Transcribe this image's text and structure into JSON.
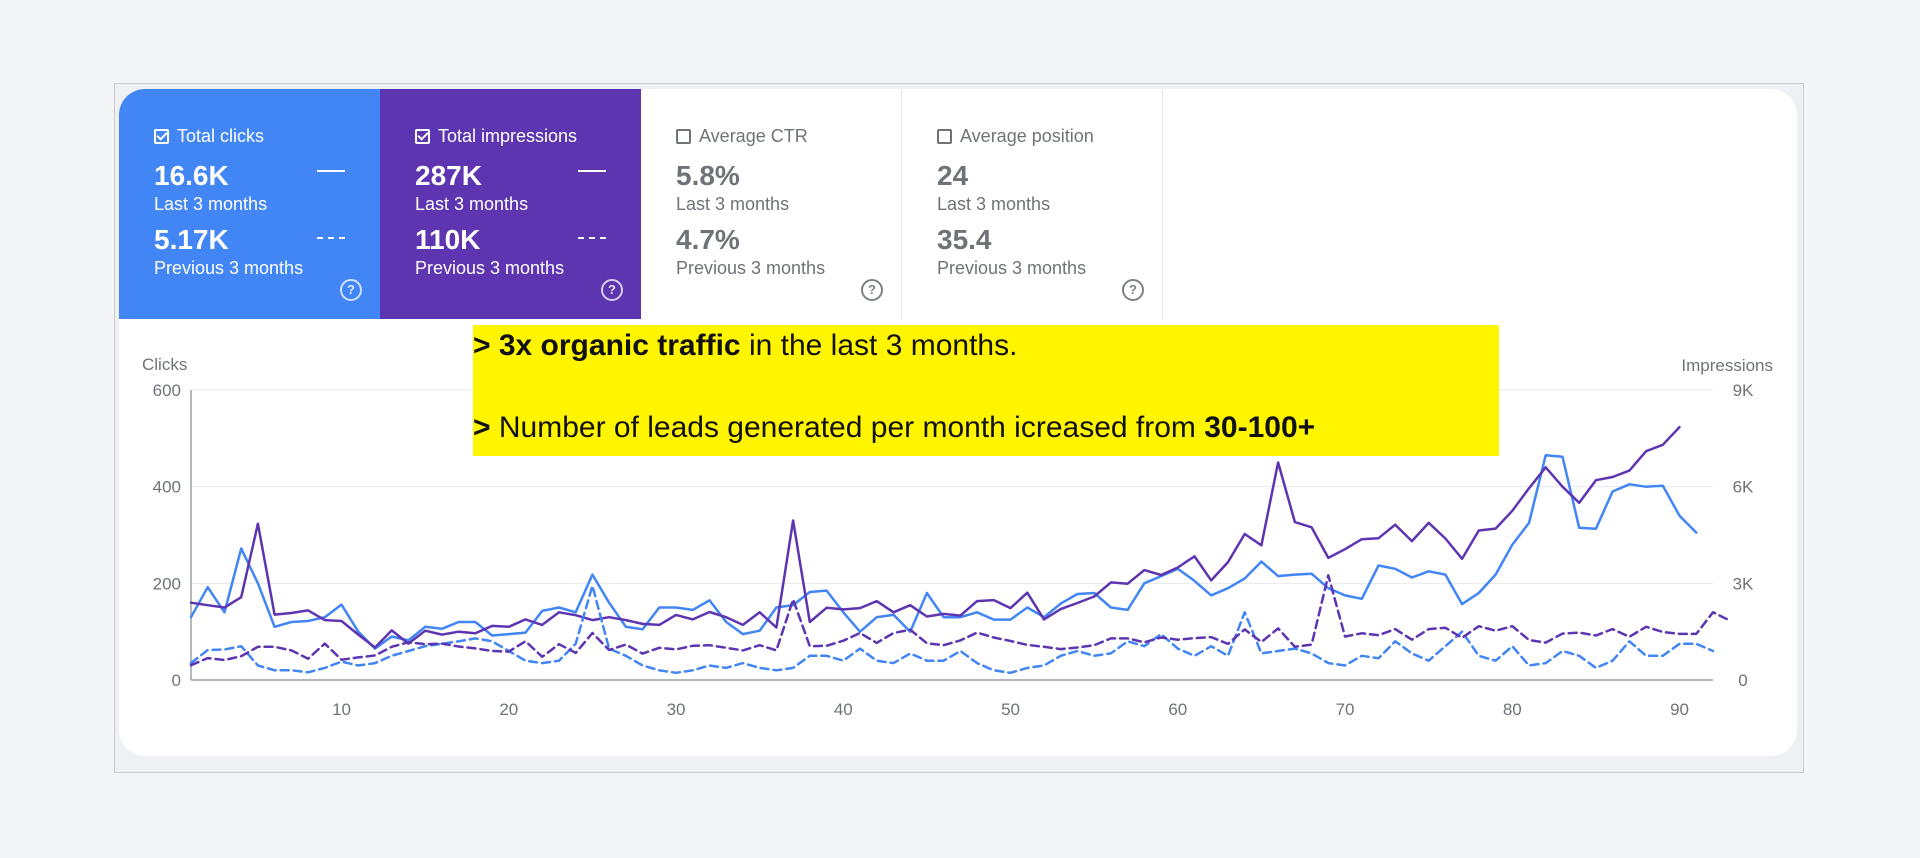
{
  "cards": [
    {
      "label": "Total clicks",
      "current": "16.6K",
      "current_label": "Last 3 months",
      "previous": "5.17K",
      "previous_label": "Previous 3 months",
      "help": "?"
    },
    {
      "label": "Total impressions",
      "current": "287K",
      "current_label": "Last 3 months",
      "previous": "110K",
      "previous_label": "Previous 3 months",
      "help": "?"
    },
    {
      "label": "Average CTR",
      "current": "5.8%",
      "current_label": "Last 3 months",
      "previous": "4.7%",
      "previous_label": "Previous 3 months",
      "help": "?"
    },
    {
      "label": "Average position",
      "current": "24",
      "current_label": "Last 3 months",
      "previous": "35.4",
      "previous_label": "Previous 3 months",
      "help": "?"
    }
  ],
  "banner": {
    "line1_bold": "> 3x organic traffic",
    "line1_rest": " in the last 3 months.",
    "line2_bold_prefix": ">",
    "line2_text": " Number of leads generated per month icreased from ",
    "line2_bold_suffix": "30-100+"
  },
  "colors": {
    "clicks": "#4285f4",
    "impressions": "#5e35b1",
    "grid": "#e9eaec",
    "axis_text": "#6f7378"
  },
  "chart_data": {
    "type": "line",
    "xlabel": "",
    "ylabel": "Clicks",
    "y2label": "Impressions",
    "xlim": [
      1,
      92
    ],
    "xticks": [
      10,
      20,
      30,
      40,
      50,
      60,
      70,
      80,
      90
    ],
    "ylim": [
      0,
      600
    ],
    "yticks": [
      0,
      200,
      400,
      600
    ],
    "y2lim": [
      0,
      9000
    ],
    "y2ticks": [
      "0",
      "3K",
      "6K",
      "9K"
    ],
    "series": [
      {
        "name": "Total clicks (Last 3 months)",
        "axis": "left",
        "style": "solid",
        "color": "#4285f4",
        "values": [
          130,
          192,
          140,
          272,
          200,
          110,
          120,
          122,
          130,
          156,
          100,
          65,
          90,
          82,
          110,
          106,
          120,
          120,
          92,
          95,
          98,
          143,
          150,
          140,
          218,
          160,
          110,
          105,
          150,
          150,
          145,
          165,
          120,
          95,
          102,
          150,
          155,
          182,
          185,
          140,
          100,
          130,
          135,
          100,
          180,
          130,
          130,
          140,
          125,
          125,
          150,
          130,
          158,
          178,
          180,
          150,
          145,
          200,
          215,
          230,
          205,
          175,
          190,
          210,
          245,
          215,
          218,
          220,
          190,
          175,
          168,
          237,
          230,
          212,
          225,
          218,
          157,
          180,
          218,
          280,
          325,
          465,
          462,
          315,
          313,
          390,
          405,
          400,
          402,
          340,
          305
        ]
      },
      {
        "name": "Total impressions (Last 3 months)",
        "axis": "right",
        "style": "solid",
        "color": "#5e35b1",
        "values": [
          2400,
          2320,
          2250,
          2570,
          4850,
          2030,
          2080,
          2160,
          1860,
          1830,
          1410,
          1010,
          1540,
          1130,
          1530,
          1410,
          1500,
          1450,
          1680,
          1650,
          1880,
          1710,
          2100,
          2010,
          1860,
          1950,
          1860,
          1740,
          1710,
          2020,
          1880,
          2110,
          1950,
          1710,
          2100,
          1630,
          4950,
          1800,
          2240,
          2190,
          2230,
          2450,
          2100,
          2320,
          1970,
          2050,
          2000,
          2450,
          2480,
          2230,
          2710,
          1880,
          2200,
          2390,
          2590,
          3030,
          2990,
          3410,
          3260,
          3490,
          3840,
          3090,
          3660,
          4530,
          4180,
          6750,
          4900,
          4740,
          3790,
          4060,
          4370,
          4400,
          4820,
          4310,
          4880,
          4390,
          3760,
          4640,
          4700,
          5250,
          5950,
          6600,
          6000,
          5500,
          6200,
          6300,
          6500,
          7100,
          7300,
          7850
        ]
      },
      {
        "name": "Total clicks (Previous 3 months)",
        "axis": "left",
        "style": "dashed",
        "color": "#4285f4",
        "values": [
          35,
          62,
          63,
          70,
          30,
          20,
          20,
          16,
          25,
          38,
          30,
          35,
          50,
          60,
          70,
          75,
          80,
          86,
          80,
          60,
          40,
          35,
          40,
          75,
          195,
          65,
          50,
          30,
          20,
          15,
          20,
          30,
          25,
          35,
          25,
          20,
          25,
          50,
          50,
          40,
          65,
          40,
          35,
          55,
          40,
          40,
          60,
          35,
          20,
          15,
          25,
          30,
          50,
          60,
          50,
          55,
          80,
          70,
          95,
          65,
          50,
          70,
          50,
          140,
          55,
          60,
          65,
          55,
          35,
          30,
          50,
          45,
          80,
          55,
          40,
          70,
          100,
          50,
          40,
          70,
          30,
          35,
          60,
          50,
          25,
          40,
          80,
          50,
          50,
          75,
          75,
          60
        ]
      },
      {
        "name": "Total impressions (Previous 3 months)",
        "axis": "right",
        "style": "dashed",
        "color": "#5e35b1",
        "values": [
          460,
          680,
          620,
          740,
          1030,
          1030,
          920,
          660,
          1130,
          630,
          700,
          760,
          1030,
          1170,
          1110,
          1130,
          1040,
          980,
          900,
          880,
          1200,
          720,
          1110,
          840,
          1460,
          930,
          1100,
          820,
          1000,
          950,
          1060,
          1080,
          1000,
          920,
          1080,
          920,
          2500,
          1050,
          1060,
          1220,
          1460,
          1150,
          1460,
          1560,
          1140,
          1080,
          1230,
          1470,
          1320,
          1210,
          1090,
          1030,
          960,
          1010,
          1080,
          1290,
          1290,
          1170,
          1320,
          1250,
          1300,
          1330,
          1120,
          1570,
          1180,
          1600,
          1030,
          1100,
          3250,
          1350,
          1450,
          1390,
          1580,
          1250,
          1580,
          1620,
          1310,
          1670,
          1530,
          1670,
          1240,
          1160,
          1440,
          1470,
          1380,
          1580,
          1340,
          1650,
          1490,
          1430,
          1430,
          2100,
          1850
        ]
      }
    ]
  }
}
